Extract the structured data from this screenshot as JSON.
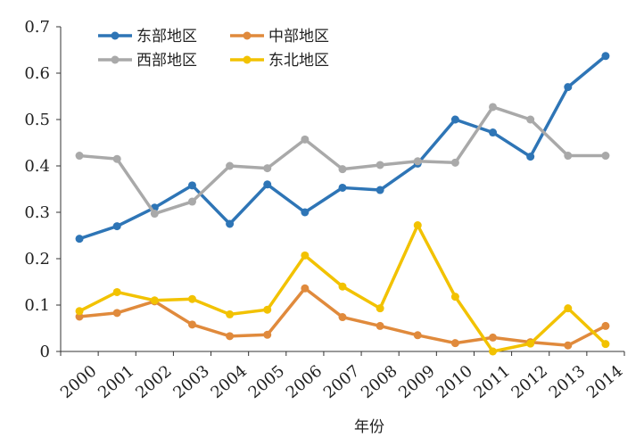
{
  "chart_data": {
    "type": "line",
    "title": "",
    "xlabel": "年份",
    "ylabel": "",
    "categories": [
      "2000",
      "2001",
      "2002",
      "2003",
      "2004",
      "2005",
      "2006",
      "2007",
      "2008",
      "2009",
      "2010",
      "2011",
      "2012",
      "2013",
      "2014"
    ],
    "y_ticks": [
      "0",
      "0.1",
      "0.2",
      "0.3",
      "0.4",
      "0.5",
      "0.6",
      "0.7"
    ],
    "ylim": [
      0,
      0.7
    ],
    "grid": false,
    "legend_position": "top-left",
    "series": [
      {
        "name": "东部地区",
        "color": "#2e75b6",
        "values": [
          0.243,
          0.27,
          0.31,
          0.358,
          0.275,
          0.36,
          0.3,
          0.353,
          0.348,
          0.405,
          0.5,
          0.472,
          0.42,
          0.57,
          0.637
        ]
      },
      {
        "name": "中部地区",
        "color": "#e08a3c",
        "values": [
          0.075,
          0.083,
          0.108,
          0.058,
          0.033,
          0.036,
          0.136,
          0.074,
          0.055,
          0.035,
          0.018,
          0.03,
          0.02,
          0.013,
          0.055
        ]
      },
      {
        "name": "西部地区",
        "color": "#a9a9a9",
        "values": [
          0.422,
          0.415,
          0.297,
          0.323,
          0.4,
          0.395,
          0.457,
          0.393,
          0.402,
          0.41,
          0.407,
          0.527,
          0.5,
          0.422,
          0.422
        ]
      },
      {
        "name": "东北地区",
        "color": "#f2c200",
        "values": [
          0.087,
          0.128,
          0.11,
          0.113,
          0.08,
          0.09,
          0.207,
          0.14,
          0.093,
          0.272,
          0.118,
          0.0,
          0.017,
          0.093,
          0.016
        ]
      }
    ]
  }
}
